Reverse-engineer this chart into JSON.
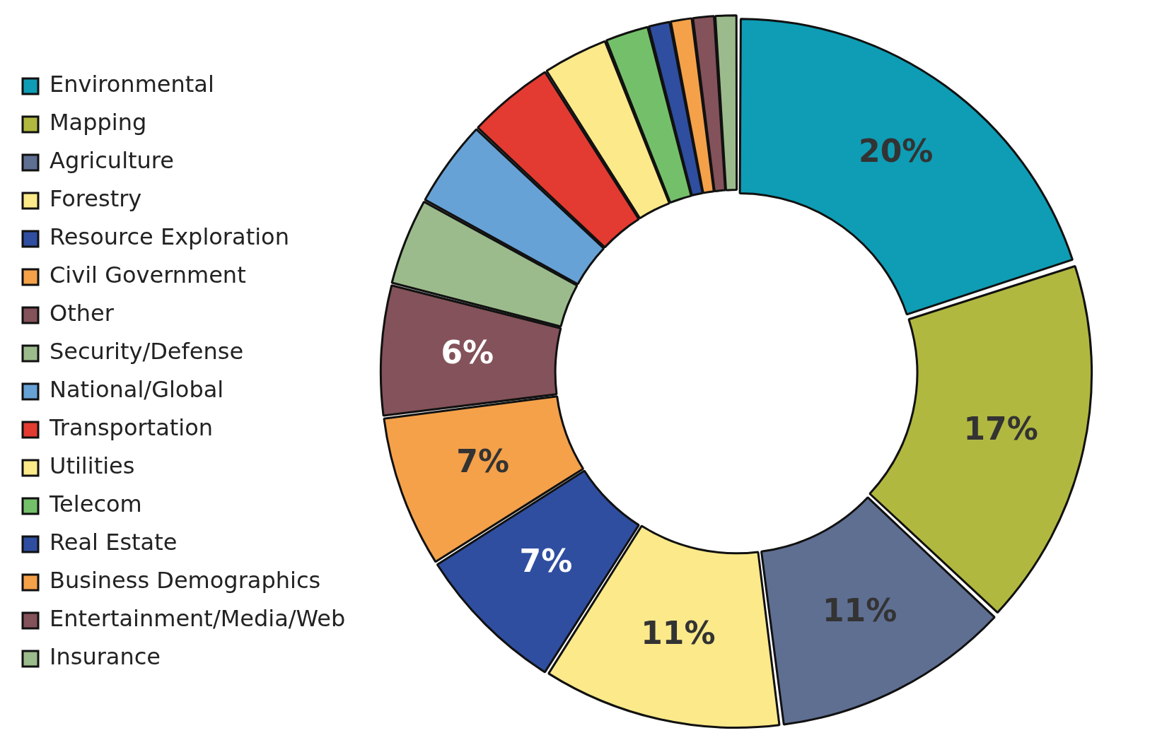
{
  "chart_data": {
    "type": "donut",
    "categories": [
      "Environmental",
      "Mapping",
      "Agriculture",
      "Forestry",
      "Resource Exploration",
      "Civil Government",
      "Other",
      "Security/Defense",
      "National/Global",
      "Transportation",
      "Utilities",
      "Telecom",
      "Real Estate",
      "Business Demographics",
      "Entertainment/Media/Web",
      "Insurance"
    ],
    "values": [
      20,
      17,
      11,
      11,
      7,
      7,
      6,
      4,
      4,
      4,
      3,
      2,
      1,
      1,
      1,
      1
    ],
    "colors": [
      "#0e9db5",
      "#b1b840",
      "#5f6f92",
      "#fbe98a",
      "#2f4ea0",
      "#f4a14a",
      "#84525a",
      "#9cbb8c",
      "#67a2d6",
      "#e33b31",
      "#fbe98a",
      "#74c06a",
      "#2f4ea0",
      "#f4a14a",
      "#84525a",
      "#9cbb8c"
    ],
    "value_labels": [
      "20%",
      "17%",
      "11%",
      "11%",
      "7%",
      "7%",
      "6%",
      null,
      null,
      null,
      null,
      null,
      null,
      null,
      null,
      null
    ],
    "legend": "left"
  }
}
